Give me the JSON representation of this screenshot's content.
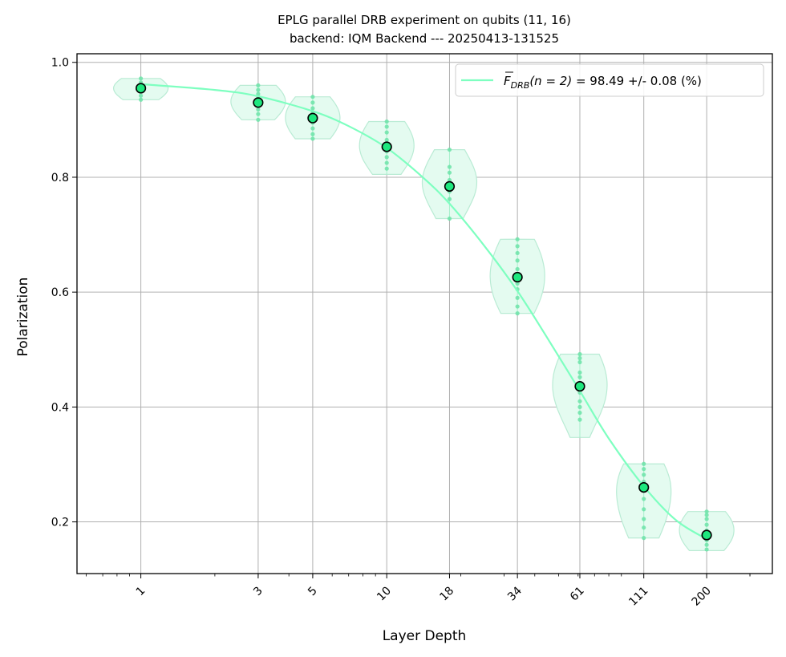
{
  "chart_data": {
    "type": "scatter",
    "title": "EPLG parallel DRB experiment on qubits (11, 16)",
    "subtitle": "backend: IQM Backend --- 20250413-131525",
    "xlabel": "Layer Depth",
    "ylabel": "Polarization",
    "x_scale": "log",
    "x_ticks": [
      "1",
      "3",
      "5",
      "10",
      "18",
      "34",
      "61",
      "111",
      "200"
    ],
    "y_ticks": [
      "0.2",
      "0.4",
      "0.6",
      "0.8",
      "1.0"
    ],
    "xlim": [
      0.55,
      370
    ],
    "ylim": [
      0.11,
      1.015
    ],
    "grid": true,
    "legend_position": "top-right",
    "legend_entry": {
      "prefix": "F",
      "subscript": "DRB",
      "arg": "(n = 2)",
      "text": " = 98.49 +/- 0.08 (%)"
    },
    "colors": {
      "fit": "#7effc0",
      "violin_fill": "#e4fbf0",
      "violin_edge": "#b9ebd4",
      "samples": "#6ce3a8",
      "mean_fill": "#1de87e",
      "mean_edge": "#000000",
      "grid": "#b0b0b0"
    },
    "means": {
      "x": [
        1,
        3,
        5,
        10,
        18,
        34,
        61,
        111,
        200
      ],
      "y": [
        0.955,
        0.93,
        0.903,
        0.853,
        0.784,
        0.626,
        0.436,
        0.26,
        0.177
      ]
    },
    "fit": {
      "x": [
        1,
        2,
        3,
        5,
        7,
        10,
        14,
        18,
        25,
        34,
        45,
        61,
        80,
        111,
        150,
        200
      ],
      "y": [
        0.962,
        0.952,
        0.941,
        0.915,
        0.889,
        0.851,
        0.8,
        0.754,
        0.68,
        0.602,
        0.52,
        0.428,
        0.345,
        0.262,
        0.203,
        0.17
      ]
    },
    "distributions": [
      {
        "x": 1,
        "min": 0.935,
        "max": 0.972,
        "samples": [
          0.935,
          0.942,
          0.95,
          0.955,
          0.96,
          0.965,
          0.972
        ]
      },
      {
        "x": 3,
        "min": 0.9,
        "max": 0.96,
        "samples": [
          0.9,
          0.91,
          0.918,
          0.925,
          0.932,
          0.938,
          0.945,
          0.952,
          0.96
        ]
      },
      {
        "x": 5,
        "min": 0.867,
        "max": 0.94,
        "samples": [
          0.867,
          0.875,
          0.885,
          0.895,
          0.905,
          0.912,
          0.92,
          0.93,
          0.94
        ]
      },
      {
        "x": 10,
        "min": 0.805,
        "max": 0.897,
        "samples": [
          0.815,
          0.825,
          0.835,
          0.845,
          0.855,
          0.865,
          0.878,
          0.888,
          0.897
        ]
      },
      {
        "x": 18,
        "min": 0.728,
        "max": 0.848,
        "samples": [
          0.728,
          0.762,
          0.775,
          0.785,
          0.795,
          0.808,
          0.818,
          0.848
        ]
      },
      {
        "x": 34,
        "min": 0.563,
        "max": 0.692,
        "samples": [
          0.563,
          0.575,
          0.59,
          0.605,
          0.615,
          0.625,
          0.64,
          0.655,
          0.668,
          0.68,
          0.692
        ]
      },
      {
        "x": 61,
        "min": 0.347,
        "max": 0.492,
        "samples": [
          0.378,
          0.39,
          0.4,
          0.41,
          0.425,
          0.44,
          0.452,
          0.46,
          0.478,
          0.485,
          0.492
        ]
      },
      {
        "x": 111,
        "min": 0.172,
        "max": 0.301,
        "samples": [
          0.172,
          0.19,
          0.205,
          0.222,
          0.24,
          0.258,
          0.27,
          0.282,
          0.292,
          0.301
        ]
      },
      {
        "x": 200,
        "min": 0.15,
        "max": 0.218,
        "samples": [
          0.152,
          0.16,
          0.168,
          0.175,
          0.185,
          0.195,
          0.205,
          0.212,
          0.218
        ]
      }
    ]
  }
}
